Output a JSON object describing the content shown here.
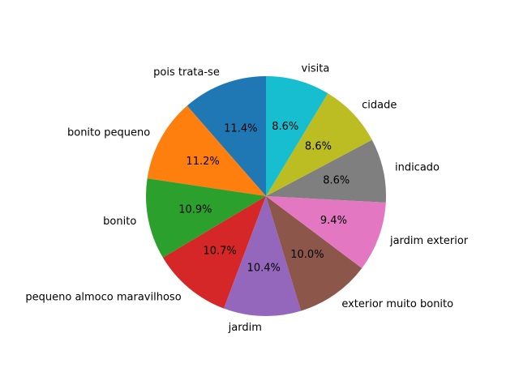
{
  "chart_data": {
    "type": "pie",
    "title": "",
    "start_angle_deg": 90,
    "direction": "counterclockwise",
    "slices": [
      {
        "label": "pois trata-se",
        "value": 11.4,
        "pct_label": "11.4%",
        "color": "#1f77b4"
      },
      {
        "label": "bonito pequeno",
        "value": 11.2,
        "pct_label": "11.2%",
        "color": "#ff7f0e"
      },
      {
        "label": "bonito",
        "value": 10.9,
        "pct_label": "10.9%",
        "color": "#2ca02c"
      },
      {
        "label": "pequeno almoco maravilhoso",
        "value": 10.7,
        "pct_label": "10.7%",
        "color": "#d62728"
      },
      {
        "label": "jardim",
        "value": 10.4,
        "pct_label": "10.4%",
        "color": "#9467bd"
      },
      {
        "label": "exterior muito bonito",
        "value": 10.0,
        "pct_label": "10.0%",
        "color": "#8c564b"
      },
      {
        "label": "jardim exterior",
        "value": 9.4,
        "pct_label": "9.4%",
        "color": "#e377c2"
      },
      {
        "label": "indicado",
        "value": 8.6,
        "pct_label": "8.6%",
        "color": "#7f7f7f"
      },
      {
        "label": "cidade",
        "value": 8.6,
        "pct_label": "8.6%",
        "color": "#bcbd22"
      },
      {
        "label": "visita",
        "value": 8.6,
        "pct_label": "8.6%",
        "color": "#17becf"
      }
    ]
  }
}
